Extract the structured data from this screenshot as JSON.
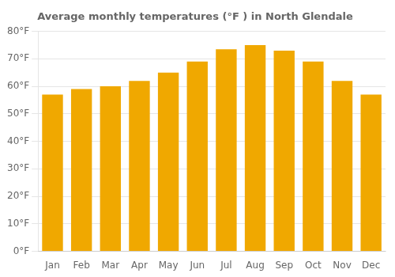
{
  "chart_data": {
    "type": "bar",
    "title": "Average monthly temperatures (°F ) in North Glendale",
    "categories": [
      "Jan",
      "Feb",
      "Mar",
      "Apr",
      "May",
      "Jun",
      "Jul",
      "Aug",
      "Sep",
      "Oct",
      "Nov",
      "Dec"
    ],
    "values": [
      57,
      59,
      60,
      62,
      65,
      69,
      73.5,
      75,
      73,
      69,
      62,
      57
    ],
    "color": "#F0A800",
    "ylim": [
      0,
      80
    ],
    "yticks": [
      {
        "value": 0,
        "label": "0°F"
      },
      {
        "value": 10,
        "label": "10°F"
      },
      {
        "value": 20,
        "label": "20°F"
      },
      {
        "value": 30,
        "label": "30°F"
      },
      {
        "value": 40,
        "label": "40°F"
      },
      {
        "value": 50,
        "label": "50°F"
      },
      {
        "value": 60,
        "label": "60°F"
      },
      {
        "value": 70,
        "label": "70°F"
      },
      {
        "value": 80,
        "label": "80°F"
      }
    ],
    "grid": true
  }
}
